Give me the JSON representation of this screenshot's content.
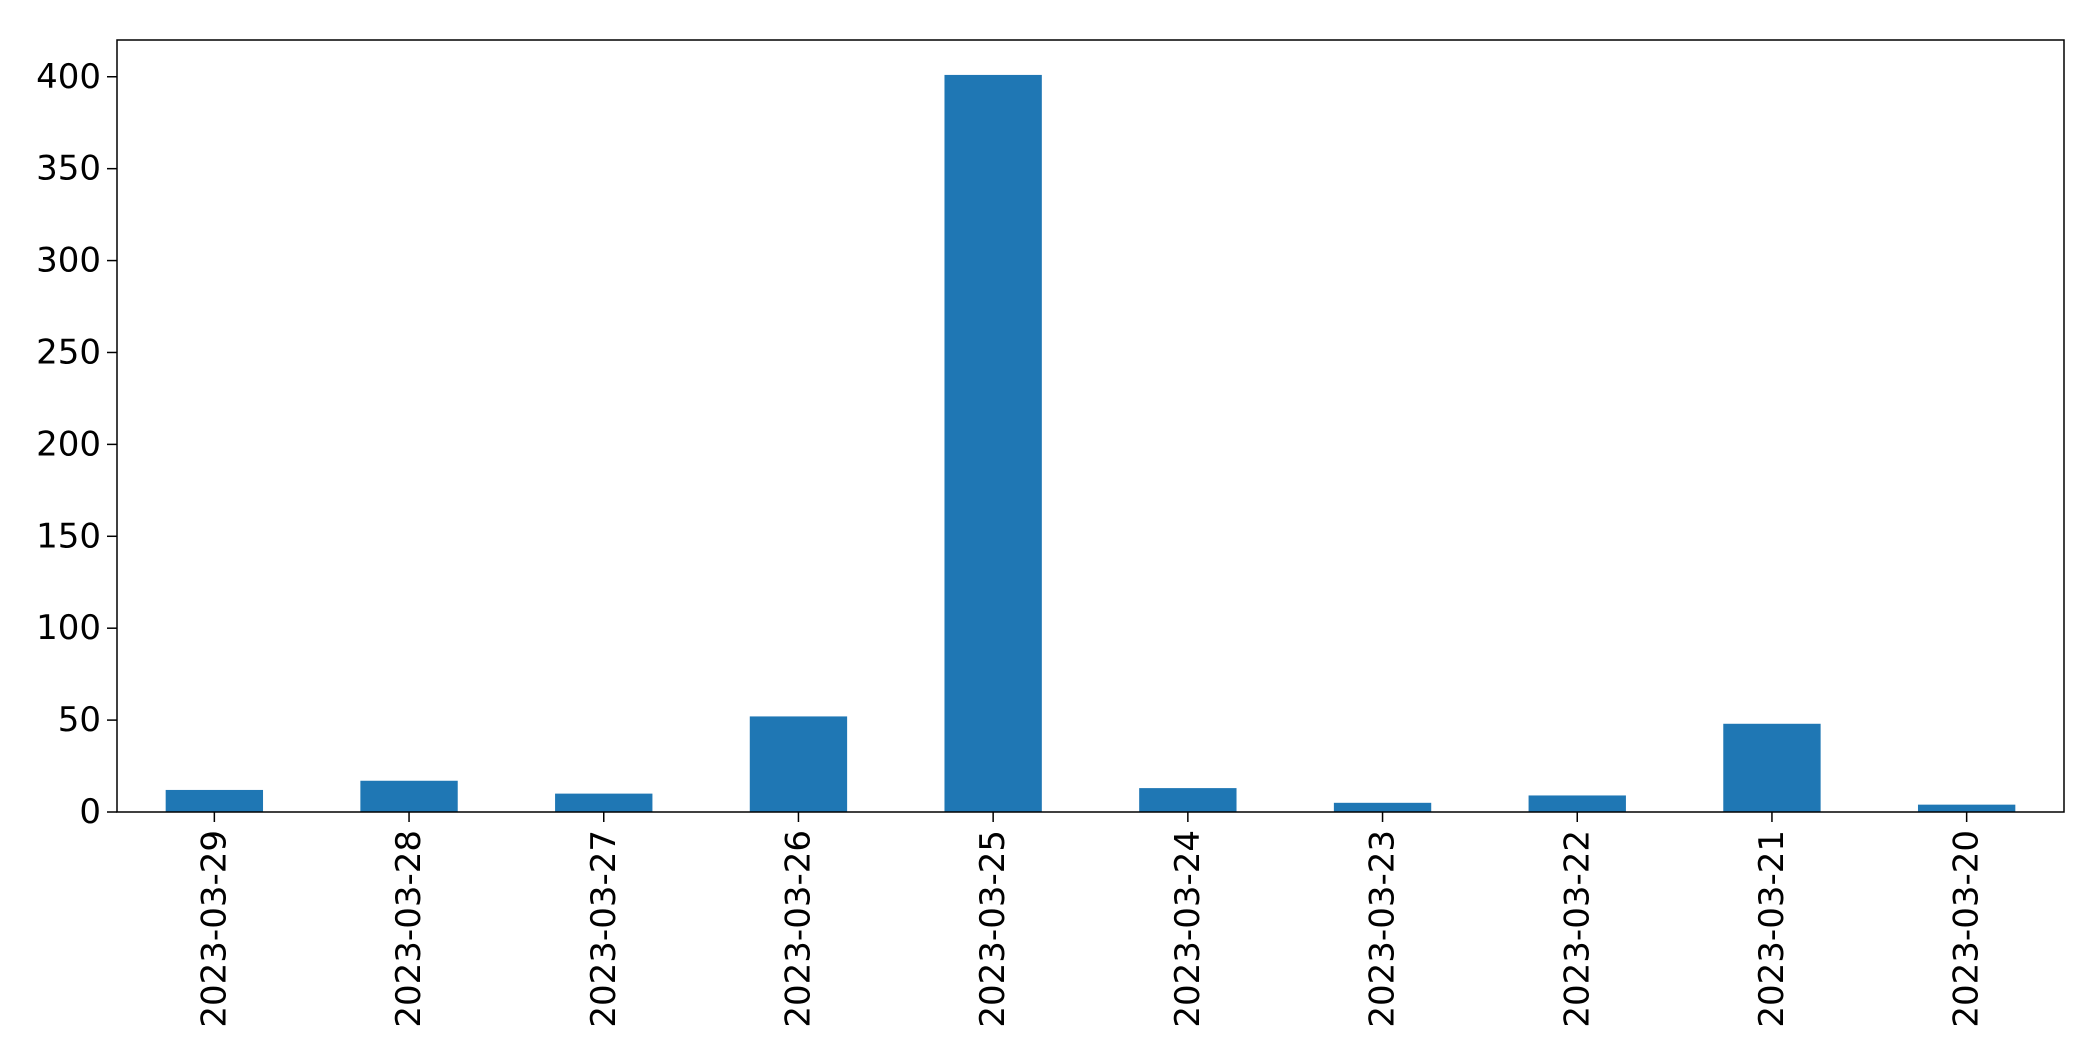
{
  "chart_data": {
    "type": "bar",
    "title": "",
    "xlabel": "",
    "ylabel": "",
    "categories": [
      "2023-03-29",
      "2023-03-28",
      "2023-03-27",
      "2023-03-26",
      "2023-03-25",
      "2023-03-24",
      "2023-03-23",
      "2023-03-22",
      "2023-03-21",
      "2023-03-20"
    ],
    "values": [
      12,
      17,
      10,
      52,
      401,
      13,
      5,
      9,
      48,
      4
    ],
    "ylim": [
      0,
      420
    ],
    "yticks": [
      0,
      50,
      100,
      150,
      200,
      250,
      300,
      350,
      400
    ],
    "grid": false,
    "bar_color": "#1f77b4"
  }
}
